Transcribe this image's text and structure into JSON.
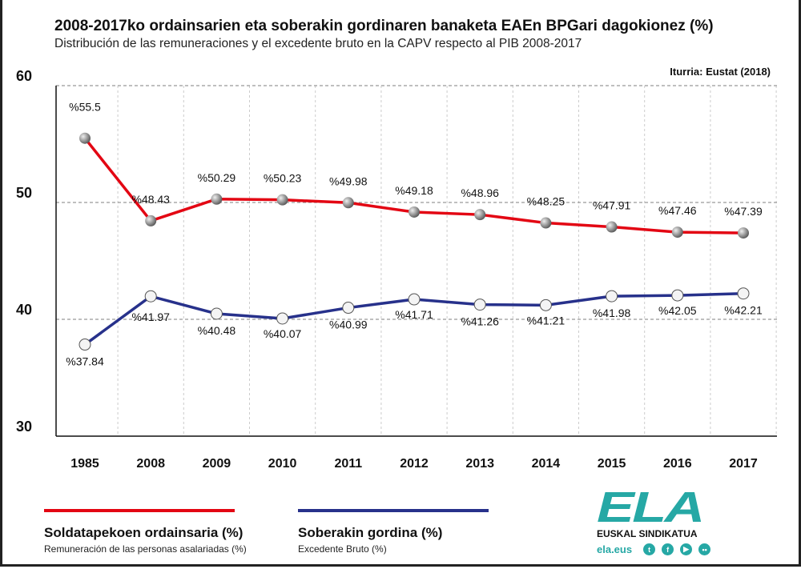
{
  "header": {
    "title": "2008-2017ko ordainsarien eta soberakin gordinaren banaketa EAEn BPGari dagokionez (%)",
    "subtitle": "Distribución de las remuneraciones y el excedente bruto en la CAPV respecto al PIB 2008-2017",
    "source": "Iturria: Eustat (2018)"
  },
  "chart_data": {
    "type": "line",
    "title": "2008-2017ko ordainsarien eta soberakin gordinaren banaketa EAEn BPGari dagokionez (%)",
    "categories": [
      "1985",
      "2008",
      "2009",
      "2010",
      "2011",
      "2012",
      "2013",
      "2014",
      "2015",
      "2016",
      "2017"
    ],
    "ylim": [
      30,
      60
    ],
    "yticks": [
      "30",
      "40",
      "50",
      "60"
    ],
    "grid": true,
    "legend": "bottom",
    "series": [
      {
        "name": "Soldatapekoen ordainsaria (%)",
        "desc": "Remuneración de las personas asalariadas (%)",
        "color": "#e30613",
        "values": [
          55.5,
          48.43,
          50.29,
          50.23,
          49.98,
          49.18,
          48.96,
          48.25,
          47.91,
          47.46,
          47.39
        ],
        "labels": [
          "%55.5",
          "%48.43",
          "%50.29",
          "%50.23",
          "%49.98",
          "%49.18",
          "%48.96",
          "%48.25",
          "%47.91",
          "%47.46",
          "%47.39"
        ]
      },
      {
        "name": "Soberakin gordina (%)",
        "desc": "Excedente Bruto (%)",
        "color": "#27318b",
        "values": [
          37.84,
          41.97,
          40.48,
          40.07,
          40.99,
          41.71,
          41.26,
          41.21,
          41.98,
          42.05,
          42.21
        ],
        "labels": [
          "%37.84",
          "%41.97",
          "%40.48",
          "%40.07",
          "%40.99",
          "%41.71",
          "%41.26",
          "%41.21",
          "%41.98",
          "%42.05",
          "%42.21"
        ]
      }
    ]
  },
  "logo": {
    "text": "ELA",
    "tagline": "EUSKAL SINDIKATUA",
    "web": "ela.eus",
    "social": [
      "twitter-icon",
      "facebook-icon",
      "youtube-icon",
      "flickr-icon"
    ]
  }
}
